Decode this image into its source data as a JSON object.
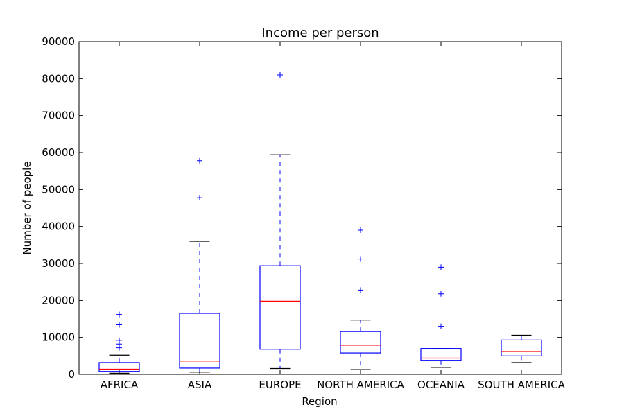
{
  "chart_data": {
    "type": "boxplot",
    "title": "Income per person",
    "xlabel": "Region",
    "ylabel": "Number of people",
    "ylim": [
      0,
      90000
    ],
    "yticks": [
      0,
      10000,
      20000,
      30000,
      40000,
      50000,
      60000,
      70000,
      80000,
      90000
    ],
    "ytick_labels": [
      "0",
      "10000",
      "20000",
      "30000",
      "40000",
      "50000",
      "60000",
      "70000",
      "80000",
      "90000"
    ],
    "grid": false,
    "colors": {
      "box": "#0000ff",
      "median": "#ff0000",
      "whisker_cap": "#000000",
      "outlier": "#0000ff"
    },
    "categories": [
      "AFRICA",
      "ASIA",
      "EUROPE",
      "NORTH AMERICA",
      "OCEANIA",
      "SOUTH AMERICA"
    ],
    "boxes": [
      {
        "category": "AFRICA",
        "whisker_low": 300,
        "q1": 800,
        "median": 1400,
        "q3": 3200,
        "whisker_high": 5200,
        "outliers": [
          7200,
          8200,
          9200,
          13400,
          16200
        ]
      },
      {
        "category": "ASIA",
        "whisker_low": 600,
        "q1": 1700,
        "median": 3600,
        "q3": 16500,
        "whisker_high": 36000,
        "outliers": [
          47800,
          57800
        ]
      },
      {
        "category": "EUROPE",
        "whisker_low": 1600,
        "q1": 6800,
        "median": 19800,
        "q3": 29400,
        "whisker_high": 59400,
        "outliers": [
          81000
        ]
      },
      {
        "category": "NORTH AMERICA",
        "whisker_low": 1300,
        "q1": 5800,
        "median": 7900,
        "q3": 11600,
        "whisker_high": 14700,
        "outliers": [
          22800,
          31200,
          39000
        ]
      },
      {
        "category": "OCEANIA",
        "whisker_low": 1900,
        "q1": 3800,
        "median": 4400,
        "q3": 7000,
        "whisker_high": 7000,
        "outliers": [
          13000,
          21800,
          29000
        ]
      },
      {
        "category": "SOUTH AMERICA",
        "whisker_low": 3200,
        "q1": 5000,
        "median": 6200,
        "q3": 9300,
        "whisker_high": 10600,
        "outliers": []
      }
    ]
  }
}
